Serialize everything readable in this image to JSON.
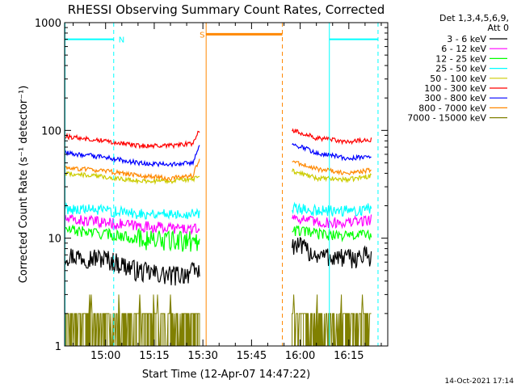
{
  "chart_data": {
    "type": "line",
    "title": "RHESSI Observing Summary Count Rates, Corrected",
    "xlabel": "Start Time (12-Apr-07 14:47:22)",
    "ylabel": "Corrected Count Rate (s⁻¹ detector⁻¹)",
    "yscale": "log",
    "xlim": [
      "14:47:22",
      "16:27:00"
    ],
    "ylim": [
      1,
      1000
    ],
    "x_ticks": [
      "15:00",
      "15:15",
      "15:30",
      "15:45",
      "16:00",
      "16:15"
    ],
    "y_ticks": [
      "1",
      "10",
      "100",
      "1000"
    ],
    "legend_header": [
      "Det 1,3,4,5,6,9,",
      "Att 0"
    ],
    "legend_position": "right",
    "series": [
      {
        "name": "3 - 6 keV",
        "color": "#000000",
        "segments": [
          {
            "x": [
              "14:47:22",
              "15:00",
              "15:10",
              "15:20",
              "15:29"
            ],
            "y": [
              7,
              6.5,
              5,
              4.5,
              5
            ]
          },
          {
            "x": [
              "15:57:30",
              "16:05",
              "16:15",
              "16:22"
            ],
            "y": [
              9,
              7,
              6.5,
              7
            ]
          }
        ]
      },
      {
        "name": "6 - 12 keV",
        "color": "#ff00ff",
        "segments": [
          {
            "x": [
              "14:47:22",
              "15:00",
              "15:10",
              "15:20",
              "15:29"
            ],
            "y": [
              15,
              14,
              13,
              12.5,
              12
            ]
          },
          {
            "x": [
              "15:57:30",
              "16:05",
              "16:15",
              "16:22"
            ],
            "y": [
              16,
              14,
              14,
              15
            ]
          }
        ]
      },
      {
        "name": "12 - 25 keV",
        "color": "#00ff00",
        "segments": [
          {
            "x": [
              "14:47:22",
              "15:00",
              "15:10",
              "15:20",
              "15:29"
            ],
            "y": [
              12,
              11,
              10,
              9.5,
              9.5
            ]
          },
          {
            "x": [
              "15:57:30",
              "16:05",
              "16:15",
              "16:22"
            ],
            "y": [
              12,
              11,
              10.5,
              11
            ]
          }
        ]
      },
      {
        "name": "25 - 50 keV",
        "color": "#00ffff",
        "segments": [
          {
            "x": [
              "14:47:22",
              "15:00",
              "15:10",
              "15:20",
              "15:29"
            ],
            "y": [
              19,
              18,
              17,
              17,
              17
            ]
          },
          {
            "x": [
              "15:57:30",
              "16:05",
              "16:15",
              "16:22"
            ],
            "y": [
              19,
              18,
              18,
              19
            ]
          }
        ]
      },
      {
        "name": "50 - 100 keV",
        "color": "#cccc00",
        "segments": [
          {
            "x": [
              "14:47:22",
              "15:00",
              "15:10",
              "15:20",
              "15:29"
            ],
            "y": [
              40,
              37,
              34,
              34,
              36
            ]
          },
          {
            "x": [
              "15:57:30",
              "16:05",
              "16:15",
              "16:22"
            ],
            "y": [
              42,
              36,
              35,
              38
            ]
          }
        ]
      },
      {
        "name": "100 - 300 keV",
        "color": "#ff0000",
        "segments": [
          {
            "x": [
              "14:47:22",
              "15:00",
              "15:10",
              "15:20",
              "15:27",
              "15:29"
            ],
            "y": [
              88,
              80,
              72,
              72,
              76,
              100
            ]
          },
          {
            "x": [
              "15:57:30",
              "16:05",
              "16:15",
              "16:22"
            ],
            "y": [
              100,
              85,
              78,
              82
            ]
          }
        ]
      },
      {
        "name": "300 - 800 keV",
        "color": "#0000ff",
        "segments": [
          {
            "x": [
              "14:47:22",
              "15:00",
              "15:10",
              "15:20",
              "15:27",
              "15:29"
            ],
            "y": [
              62,
              56,
              50,
              48,
              50,
              75
            ]
          },
          {
            "x": [
              "15:57:30",
              "16:05",
              "16:15",
              "16:22"
            ],
            "y": [
              75,
              62,
              55,
              58
            ]
          }
        ]
      },
      {
        "name": "800 - 7000 keV",
        "color": "#ff8800",
        "segments": [
          {
            "x": [
              "14:47:22",
              "15:00",
              "15:10",
              "15:20",
              "15:27",
              "15:29"
            ],
            "y": [
              45,
              42,
              38,
              36,
              38,
              55
            ]
          },
          {
            "x": [
              "15:57:30",
              "16:05",
              "16:15",
              "16:22"
            ],
            "y": [
              52,
              44,
              40,
              43
            ]
          }
        ]
      },
      {
        "name": "7000 - 15000 keV",
        "color": "#808000",
        "segments": [
          {
            "x": [
              "14:47:22",
              "15:29"
            ],
            "y": [
              2,
              2
            ]
          },
          {
            "x": [
              "15:57:30",
              "16:22"
            ],
            "y": [
              2,
              2
            ]
          }
        ]
      }
    ],
    "annotations": [
      {
        "label": "N",
        "color": "#00ffff",
        "x_start": "14:47:22",
        "x_end": "15:02:30",
        "y": 700
      },
      {
        "label": "S",
        "color": "#ff8800",
        "x_start": "15:31",
        "x_end": "15:54:30",
        "y": 780
      },
      {
        "label": "",
        "color": "#00ffff",
        "x_start": "16:09",
        "x_end": "16:24",
        "y": 700
      }
    ],
    "grid": false
  },
  "footer": {
    "timestamp": "14-Oct-2021 17:14"
  }
}
